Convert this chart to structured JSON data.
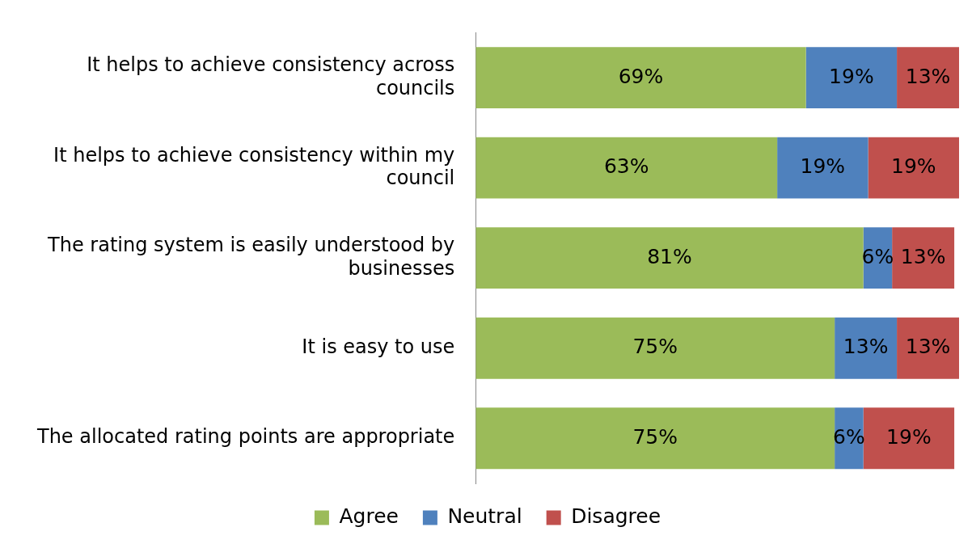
{
  "chart_data": {
    "type": "bar",
    "orientation": "horizontal",
    "stacked": true,
    "grid": false,
    "legend": "bottom",
    "categories": [
      "It helps to achieve consistency across councils",
      "It helps to achieve consistency within my council",
      "The rating system is easily understood by businesses",
      "It is easy to use",
      "The allocated rating points are appropriate"
    ],
    "series": [
      {
        "name": "Agree",
        "color": "#9bbb59",
        "values": [
          69,
          63,
          81,
          75,
          75
        ],
        "value_labels": [
          "69%",
          "63%",
          "81%",
          "75%",
          "75%"
        ]
      },
      {
        "name": "Neutral",
        "color": "#4f81bd",
        "values": [
          19,
          19,
          6,
          13,
          6
        ],
        "value_labels": [
          "19%",
          "19%",
          "6%",
          "13%",
          "6%"
        ]
      },
      {
        "name": "Disagree",
        "color": "#c0504d",
        "values": [
          13,
          19,
          13,
          13,
          19
        ],
        "value_labels": [
          "13%",
          "19%",
          "13%",
          "13%",
          "19%"
        ]
      }
    ]
  }
}
